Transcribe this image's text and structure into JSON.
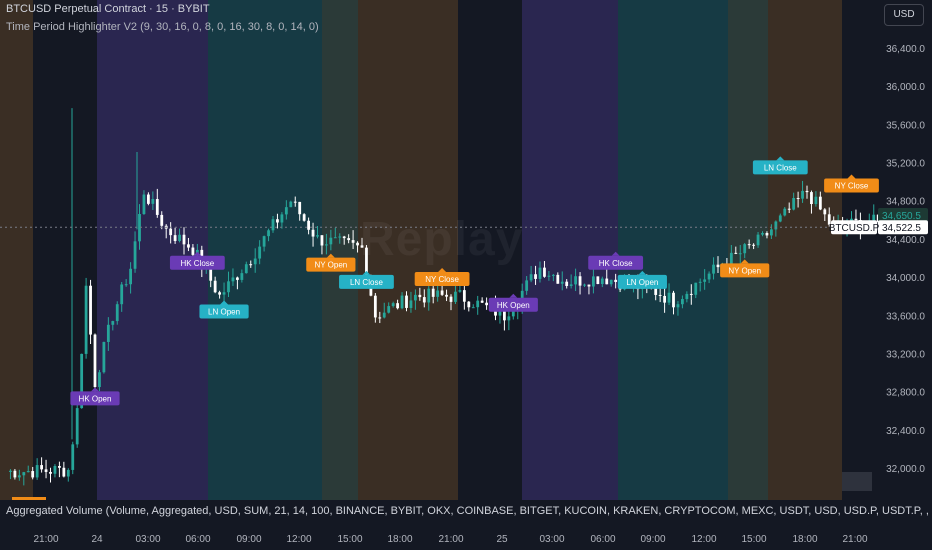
{
  "header": {
    "symbol_line": "BTCUSD Perpetual Contract · 15 · BYBIT",
    "indicator_line": "Time Period Highlighter V2 (9, 30, 16, 0, 8, 0, 16, 30, 8, 0, 14, 0)"
  },
  "currency_button": "USD",
  "watermark": "Replay",
  "volume_indicator": "Aggregated Volume (Volume, Aggregated, USD, SUM, 21, 14, 100, BINANCE, BYBIT, OKX, COINBASE, BITGET, KUCOIN, KRAKEN, CRYPTOCOM, MEXC, USDT, USD, USD.P, USDT.P, , )",
  "price_axis": {
    "ticks": [
      "36,400.0",
      "36,000.0",
      "35,600.0",
      "35,200.0",
      "34,800.0",
      "34,400.0",
      "34,000.0",
      "33,600.0",
      "33,200.0",
      "32,800.0",
      "32,400.0",
      "32,000.0"
    ],
    "tick_values": [
      36400,
      36000,
      35600,
      35200,
      34800,
      34400,
      34000,
      33600,
      33200,
      32800,
      32400,
      32000
    ],
    "labels": [
      {
        "text": "34,650.5",
        "value": 34650.5,
        "bg": "#1d3a34",
        "fg": "#26a69a"
      },
      {
        "text": "34,522.5",
        "value": 34522.5,
        "bg": "#ffffff",
        "fg": "#131722"
      }
    ],
    "symbol_tag": "BTCUSD.P"
  },
  "time_axis": {
    "labels": [
      "21:00",
      "24",
      "03:00",
      "06:00",
      "09:00",
      "12:00",
      "15:00",
      "18:00",
      "21:00",
      "25",
      "03:00",
      "06:00",
      "09:00",
      "12:00",
      "15:00",
      "18:00",
      "21:00"
    ]
  },
  "session_markers": [
    {
      "text": "HK Open",
      "color": "#6a3bb5",
      "price": 32730,
      "slot": 20
    },
    {
      "text": "HK Close",
      "color": "#6a3bb5",
      "price": 34150,
      "slot": 43
    },
    {
      "text": "LN Open",
      "color": "#26b2c6",
      "price": 33640,
      "slot": 49
    },
    {
      "text": "NY Open",
      "color": "#f18c17",
      "price": 34130,
      "slot": 73
    },
    {
      "text": "LN Close",
      "color": "#26b2c6",
      "price": 33950,
      "slot": 81
    },
    {
      "text": "NY Close",
      "color": "#f18c17",
      "price": 33980,
      "slot": 98
    },
    {
      "text": "HK Open",
      "color": "#6a3bb5",
      "price": 33710,
      "slot": 114
    },
    {
      "text": "HK Close",
      "color": "#6a3bb5",
      "price": 34150,
      "slot": 137
    },
    {
      "text": "LN Open",
      "color": "#26b2c6",
      "price": 33950,
      "slot": 143
    },
    {
      "text": "NY Open",
      "color": "#f18c17",
      "price": 34070,
      "slot": 166
    },
    {
      "text": "LN Close",
      "color": "#26b2c6",
      "price": 35150,
      "slot": 174
    },
    {
      "text": "NY Close",
      "color": "#f18c17",
      "price": 34960,
      "slot": 190
    }
  ],
  "session_colors": {
    "hk": "#2a2650",
    "ln": "#163a44",
    "ny": "#3a2e24",
    "overlap": "#2b3a38"
  },
  "candle_colors": {
    "up": "#26a69a",
    "down": "#ffffff"
  }
}
